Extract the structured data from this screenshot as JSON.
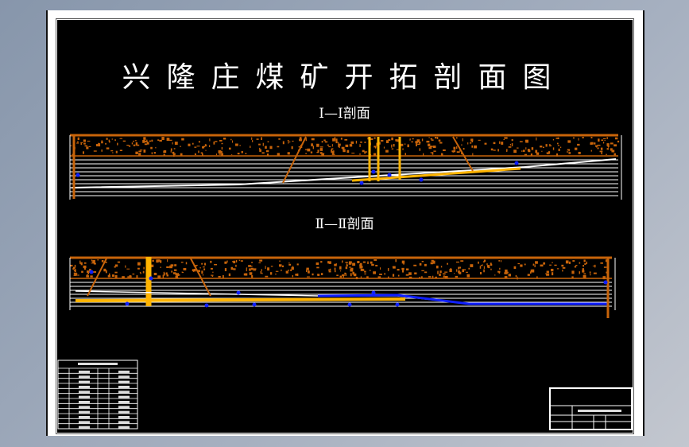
{
  "drawing": {
    "title": "兴隆庄煤矿开拓剖面图",
    "sections": [
      {
        "label": "Ⅰ—Ⅰ剖面"
      },
      {
        "label": "Ⅱ—Ⅱ剖面"
      }
    ]
  },
  "colors": {
    "background": "#000000",
    "strata_lines": "#ffffff",
    "overburden": "#c8640a",
    "shaft_roadway": "#ffb400",
    "water_coal_seam": "#1020ff",
    "desktop": "#8796ab"
  },
  "legend_table": {
    "rows": 12,
    "columns": 4
  },
  "title_block": {
    "present": true
  }
}
